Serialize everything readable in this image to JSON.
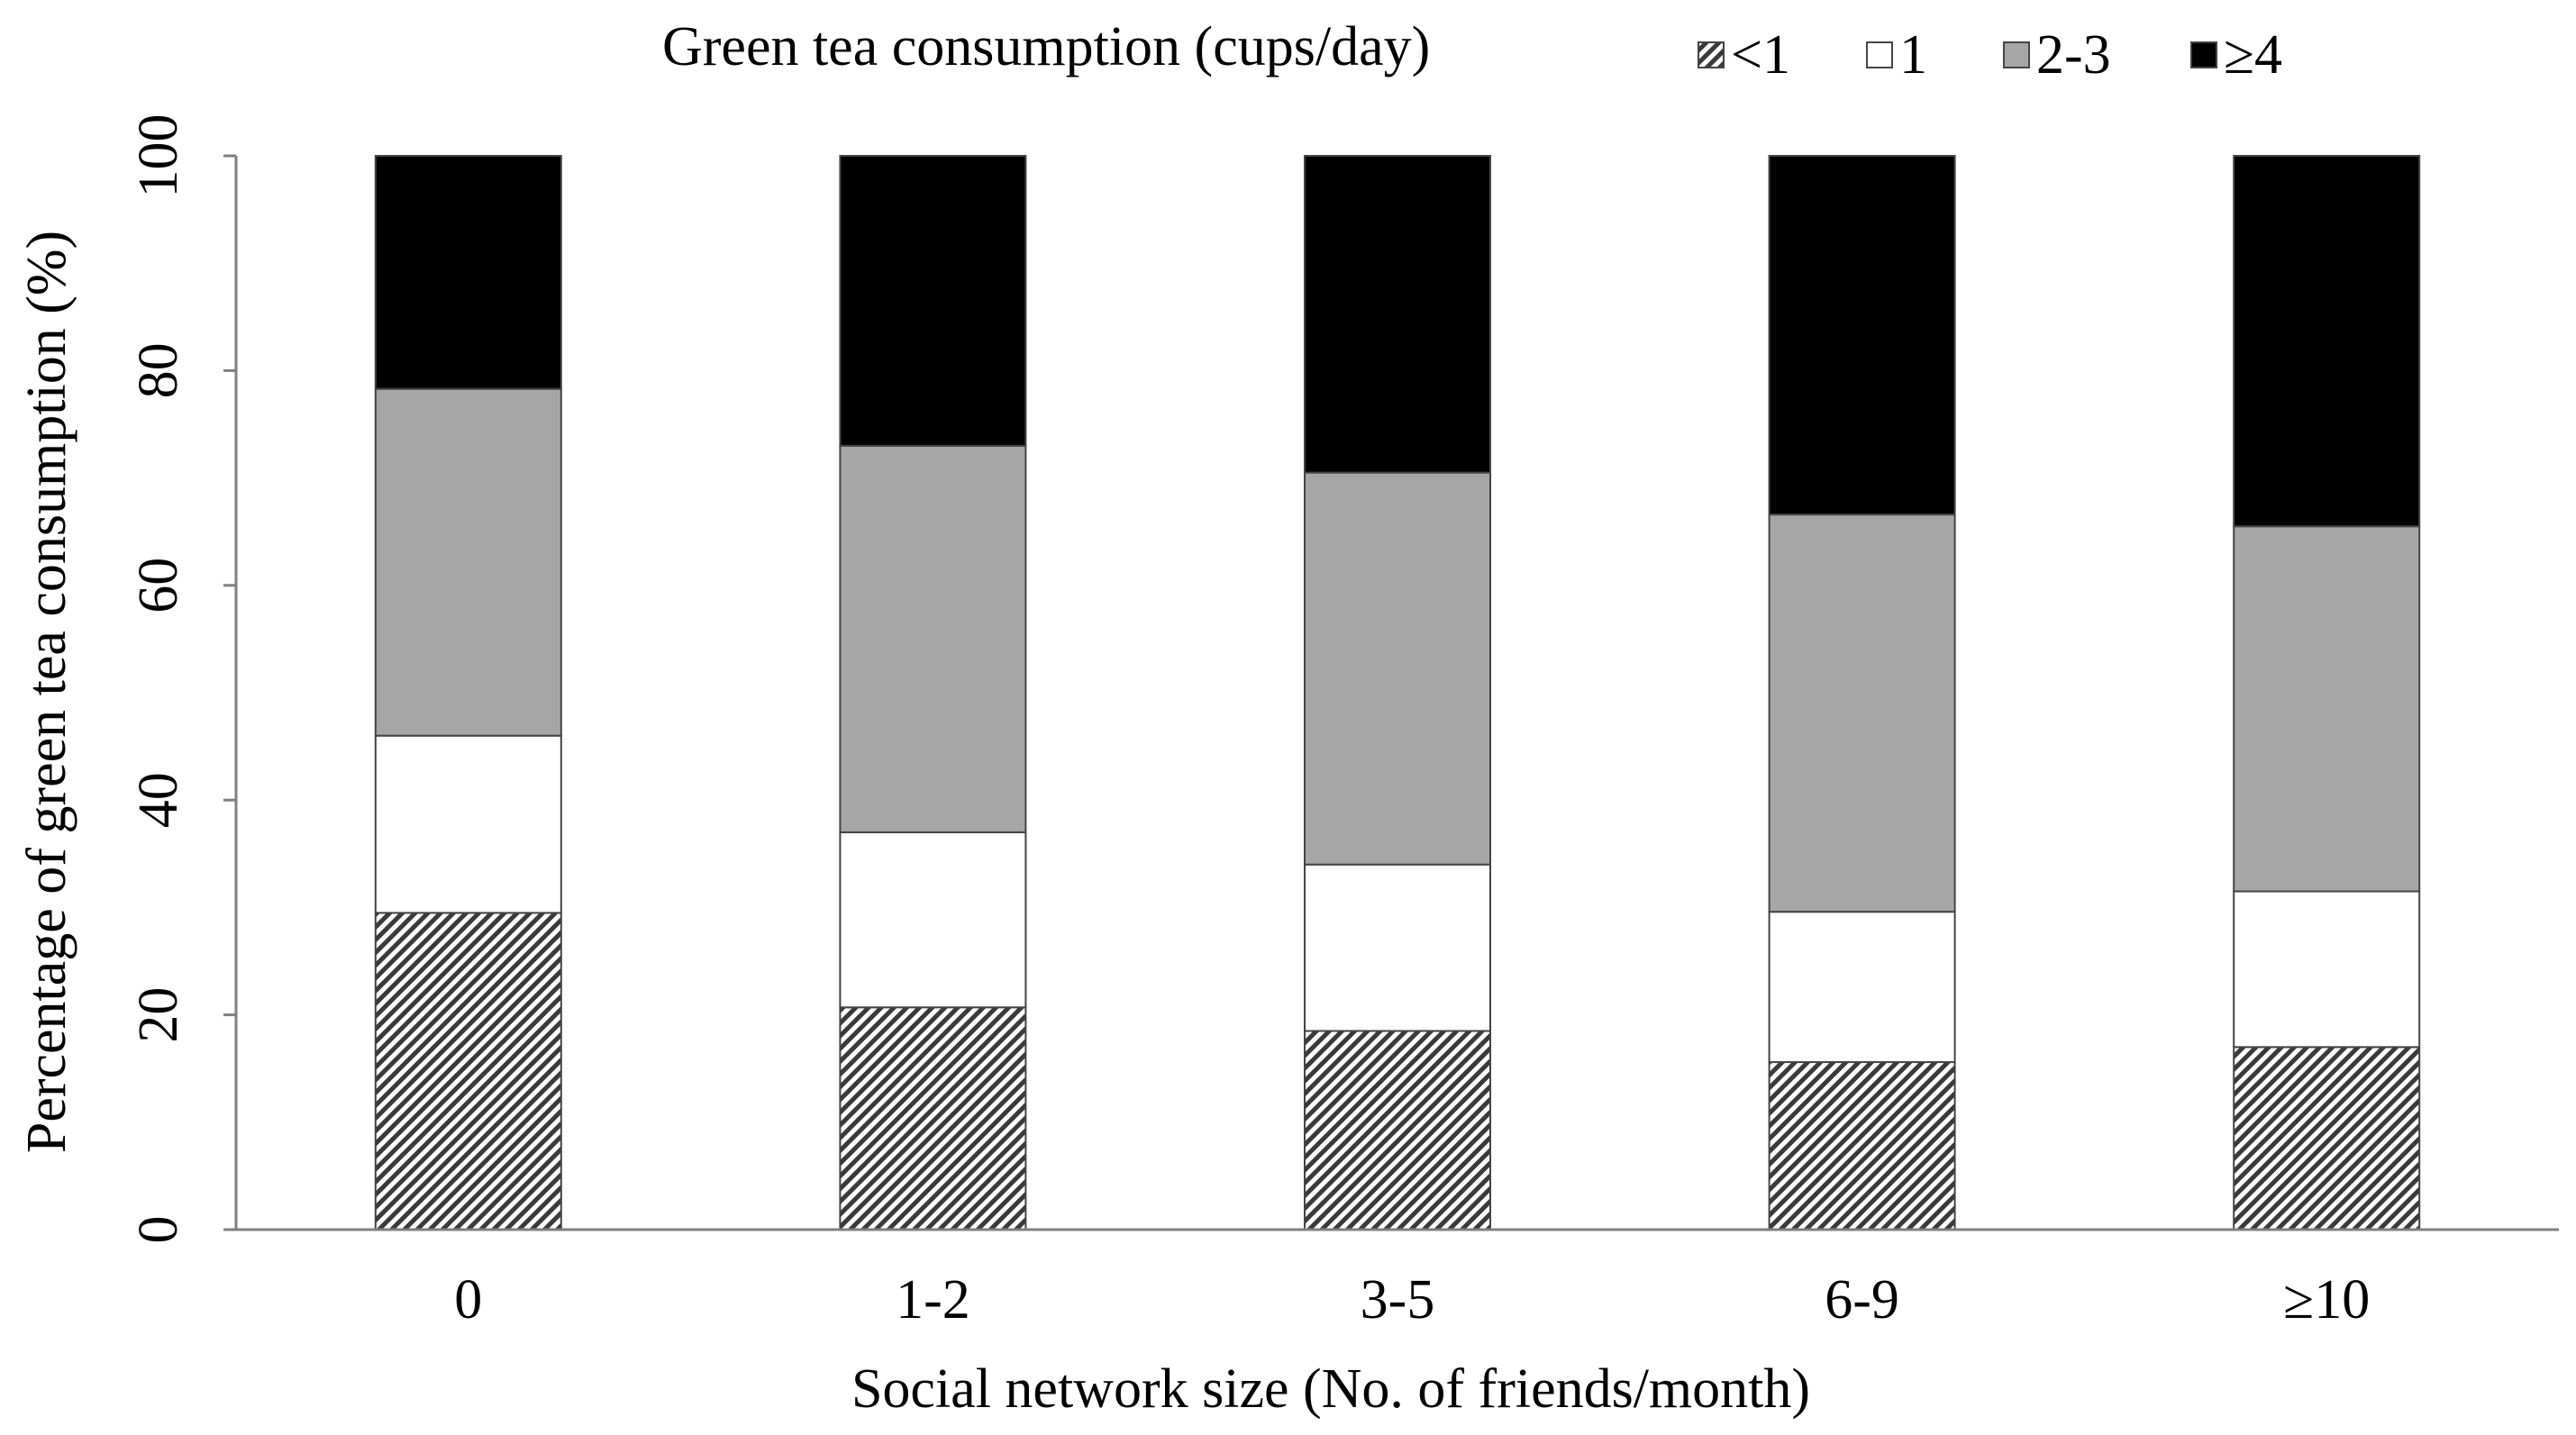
{
  "chart_data": {
    "type": "bar",
    "stacked": true,
    "categories": [
      "0",
      "1-2",
      "3-5",
      "6-9",
      "≥10"
    ],
    "series": [
      {
        "name": "<1",
        "values": [
          29.5,
          20.7,
          18.5,
          15.6,
          17.0
        ],
        "fill": "hatch"
      },
      {
        "name": "1",
        "values": [
          16.5,
          16.3,
          15.5,
          14.0,
          14.5
        ],
        "fill": "#ffffff"
      },
      {
        "name": "2-3",
        "values": [
          32.3,
          36.0,
          36.5,
          37.0,
          34.0
        ],
        "fill": "#a6a6a6"
      },
      {
        "name": "≥4",
        "values": [
          21.7,
          27.0,
          29.5,
          33.4,
          34.5
        ],
        "fill": "#000000"
      }
    ],
    "xlabel": "Social network size (No. of friends/month)",
    "ylabel": "Percentage of green tea consumption (%)",
    "ylim": [
      0,
      100
    ],
    "yticks": [
      0,
      20,
      40,
      60,
      80,
      100
    ],
    "legend": {
      "title": "Green tea consumption (cups/day)",
      "placement": "top"
    },
    "grid": false
  }
}
